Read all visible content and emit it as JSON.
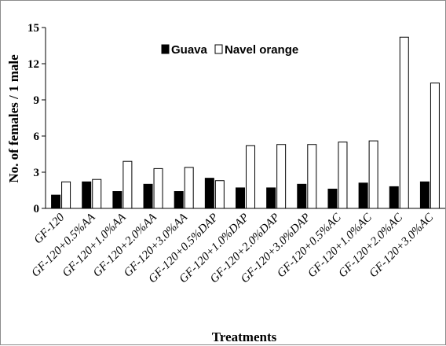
{
  "chart_data": {
    "type": "bar",
    "xlabel": "Treatments",
    "ylabel": "No. of females / 1 male",
    "ylim": [
      0,
      15
    ],
    "yticks": [
      "0",
      "3",
      "6",
      "9",
      "12",
      "15"
    ],
    "grid": false,
    "legend_position": "top-center",
    "categories": [
      "GF-120",
      "GF-120+0.5%AA",
      "GF-120+1.0%AA",
      "GF-120+2.0%AA",
      "GF-120+3.0%AA",
      "GF-120+0.5%DAP",
      "GF-120+1.0%DAP",
      "GF-120+2.0%DAP",
      "GF-120+3.0%DAP",
      "GF-120+0.5%AC",
      "GF-120+1.0%AC",
      "GF-120+2.0%AC",
      "GF-120+3.0%AC"
    ],
    "series": [
      {
        "name": "Guava",
        "color": "#000000",
        "values": [
          1.1,
          2.2,
          1.4,
          2.0,
          1.4,
          2.5,
          1.7,
          1.7,
          2.0,
          1.6,
          2.1,
          1.8,
          2.2
        ]
      },
      {
        "name": "Navel orange",
        "color": "#ffffff",
        "values": [
          2.2,
          2.4,
          3.9,
          3.3,
          3.4,
          2.3,
          5.2,
          5.3,
          5.3,
          5.5,
          5.6,
          14.2,
          10.4
        ]
      }
    ]
  }
}
